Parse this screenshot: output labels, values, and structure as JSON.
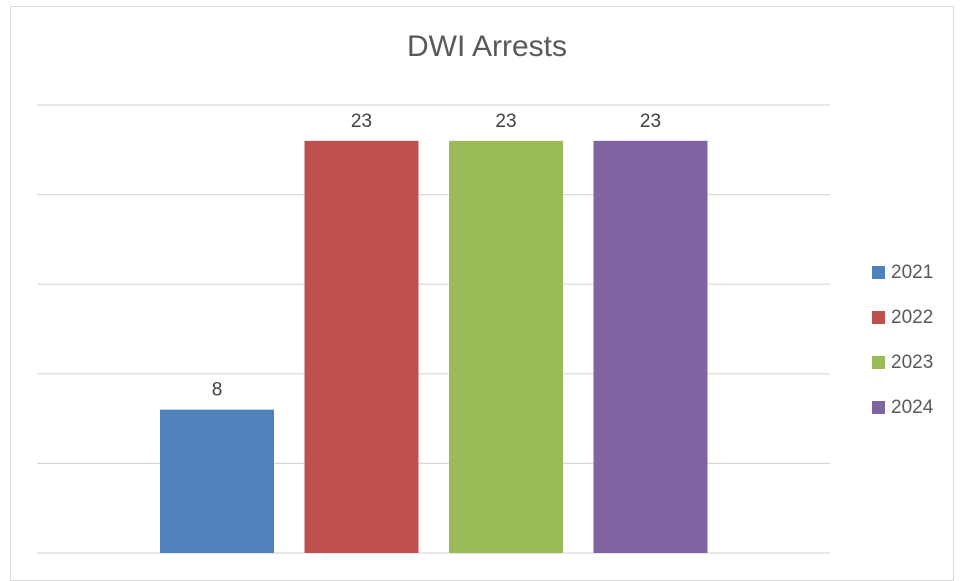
{
  "chart_data": {
    "type": "bar",
    "title": "DWI Arrests",
    "categories": [
      "2021",
      "2022",
      "2023",
      "2024"
    ],
    "values": [
      8,
      23,
      23,
      23
    ],
    "colors": [
      "#4f81bd",
      "#c0504d",
      "#9bbb59",
      "#8064a2"
    ],
    "ylim": [
      0,
      25
    ],
    "grid": true,
    "legend": "right",
    "xlabel": "",
    "ylabel": ""
  }
}
